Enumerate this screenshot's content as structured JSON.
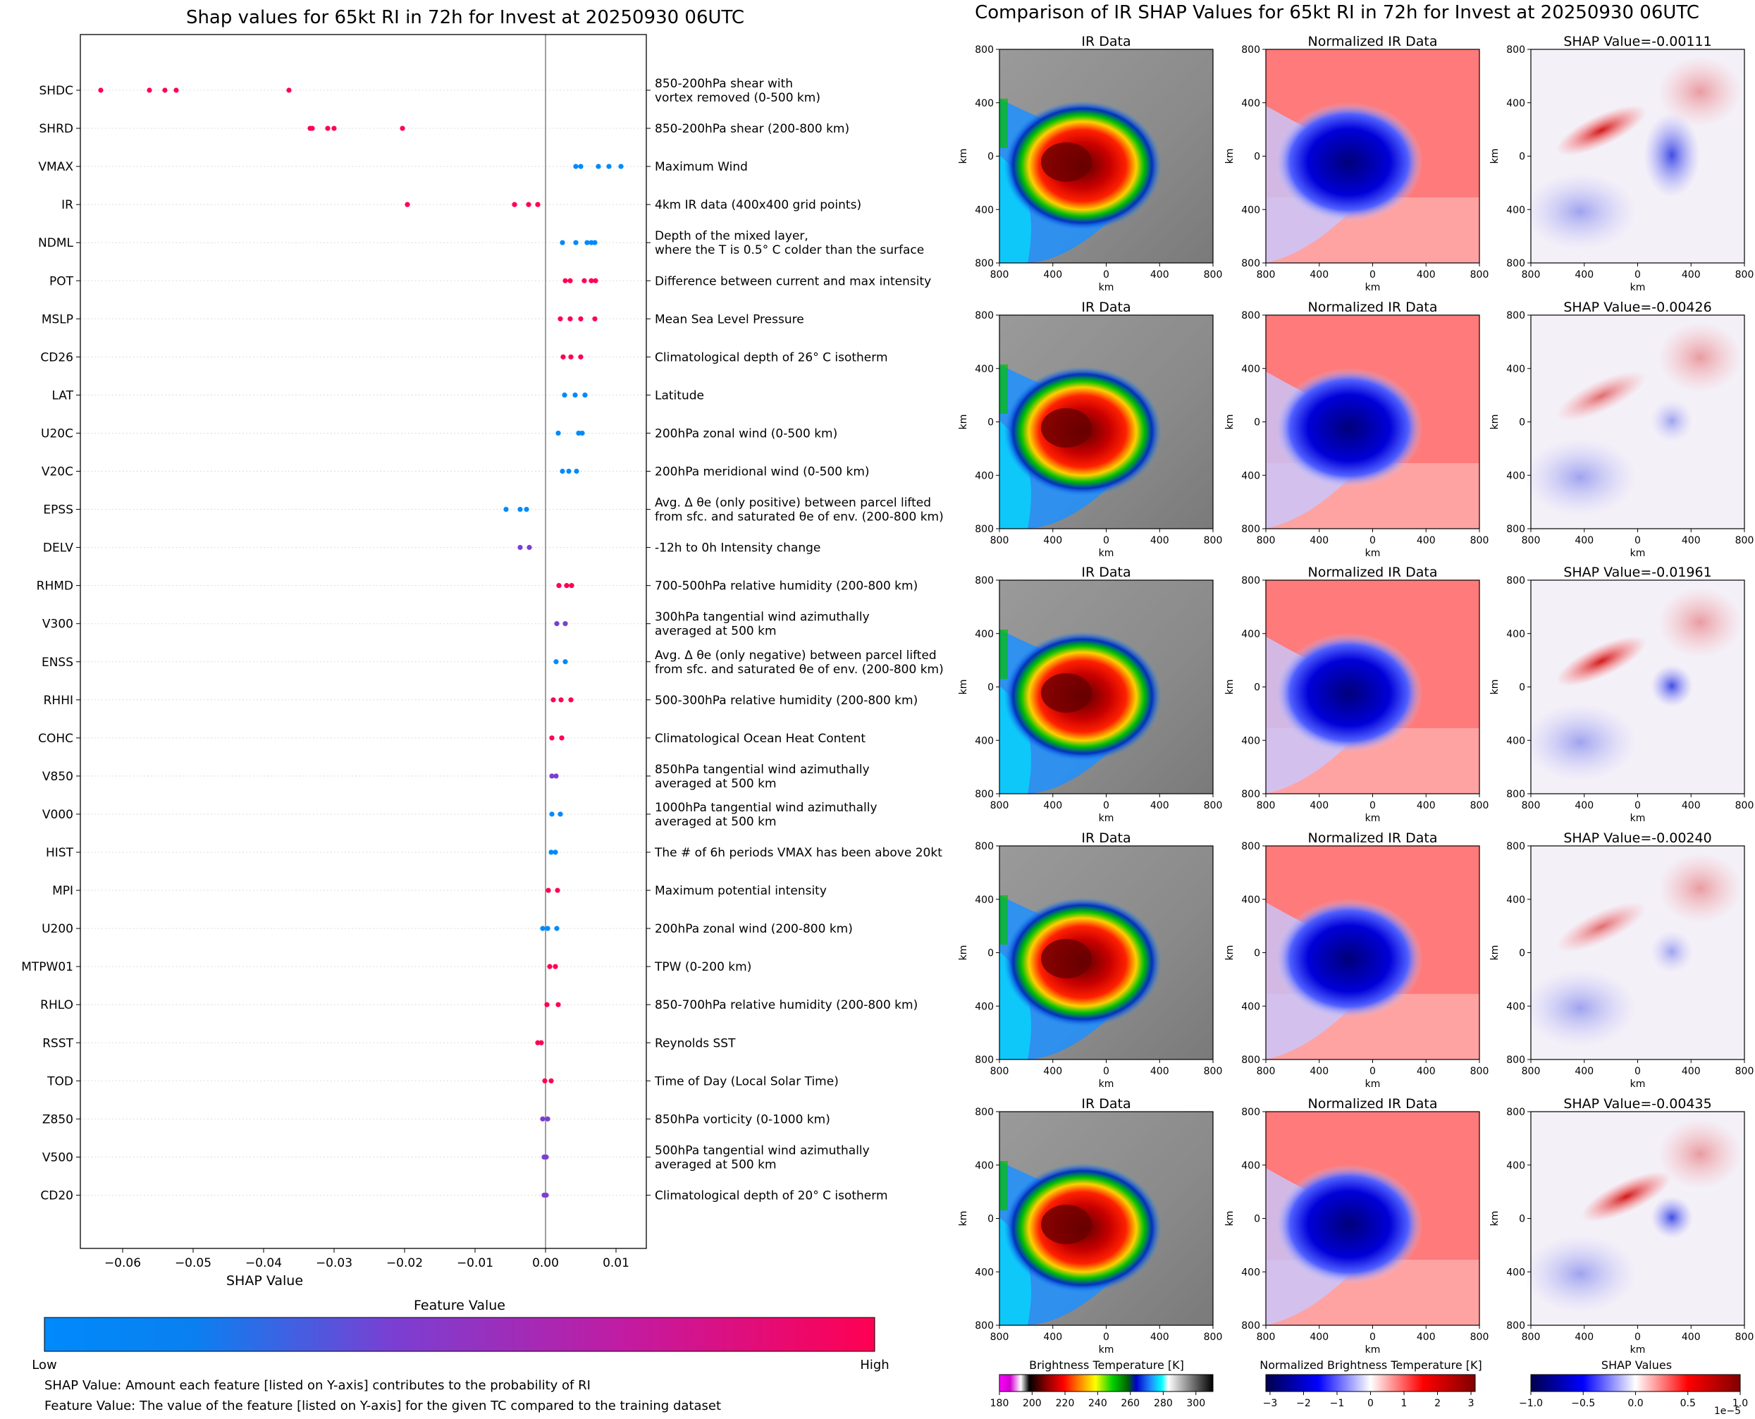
{
  "colors": {
    "low": "#008afb",
    "mid": "#7a3fd2",
    "high": "#ff0052",
    "grid": "#dddddd",
    "axis": "#000000"
  },
  "left_panel": {
    "legend": {
      "title": "Feature Value",
      "low_label": "Low",
      "high_label": "High"
    },
    "notes": [
      "SHAP Value: Amount each feature [listed on Y-axis] contributes to the probability of RI",
      "Feature Value: The value of the feature [listed on Y-axis] for the given TC compared to the training dataset"
    ]
  },
  "right_panel": {
    "title": "Comparison of IR SHAP Values for 65kt RI in 72h for Invest at 20250930 06UTC",
    "column_titles": [
      "IR Data",
      "Normalized IR Data"
    ],
    "shap_titles": [
      "SHAP Value=-0.00111",
      "SHAP Value=-0.00426",
      "SHAP Value=-0.01961",
      "SHAP Value=-0.00240",
      "SHAP Value=-0.00435"
    ],
    "shap_values": [
      -0.00111,
      -0.00426,
      -0.01961,
      -0.0024,
      -0.00435
    ],
    "tick_labels": [
      "800",
      "400",
      "0",
      "400",
      "800"
    ],
    "axis_unit": "km",
    "colorbars": [
      {
        "label": "Brightness Temperature [K]",
        "ticks": [
          "180",
          "200",
          "220",
          "240",
          "260",
          "280",
          "300"
        ]
      },
      {
        "label": "Normalized Brightness Temperature [K]",
        "ticks": [
          "−3",
          "−2",
          "−1",
          "0",
          "1",
          "2",
          "3"
        ]
      },
      {
        "label": "SHAP Values",
        "ticks": [
          "−1.0",
          "−0.5",
          "0.0",
          "0.5",
          "1.0"
        ],
        "offset": "1e−5"
      }
    ]
  },
  "chart_data": {
    "type": "scatter",
    "title": "Shap values for 65kt RI in 72h for Invest at 20250930 06UTC",
    "xlabel": "SHAP Value",
    "xlim": [
      -0.066,
      0.0143
    ],
    "xticks": [
      -0.06,
      -0.05,
      -0.04,
      -0.03,
      -0.02,
      -0.01,
      0.0,
      0.01
    ],
    "xtick_labels": [
      "−0.06",
      "−0.05",
      "−0.04",
      "−0.03",
      "−0.02",
      "−0.01",
      "0.00",
      "0.01"
    ],
    "features": [
      {
        "name": "SHDC",
        "description": [
          "850-200hPa shear with",
          "vortex removed (0-500 km)"
        ],
        "color": "high",
        "points": [
          -0.0631,
          -0.0562,
          -0.054,
          -0.0524,
          -0.0364
        ]
      },
      {
        "name": "SHRD",
        "description": [
          "850-200hPa shear (200-800 km)"
        ],
        "color": "high",
        "points": [
          -0.0334,
          -0.0331,
          -0.0309,
          -0.03,
          -0.0203
        ]
      },
      {
        "name": "VMAX",
        "description": [
          "Maximum Wind"
        ],
        "color": "low",
        "points": [
          0.0043,
          0.005,
          0.0075,
          0.009,
          0.0107
        ]
      },
      {
        "name": "IR",
        "description": [
          "4km IR data (400x400 grid points)"
        ],
        "color": "high",
        "points": [
          -0.0196,
          -0.0044,
          -0.0024,
          -0.0011
        ]
      },
      {
        "name": "NDML",
        "description": [
          "Depth of the mixed layer,",
          "where the T is 0.5° C colder than the surface"
        ],
        "color": "low",
        "points": [
          0.0024,
          0.0043,
          0.0059,
          0.0065,
          0.007
        ]
      },
      {
        "name": "POT",
        "description": [
          "Difference between current and max intensity"
        ],
        "color": "high",
        "points": [
          0.0028,
          0.0035,
          0.0055,
          0.0065,
          0.0071
        ]
      },
      {
        "name": "MSLP",
        "description": [
          "Mean Sea Level Pressure"
        ],
        "color": "high",
        "points": [
          0.0021,
          0.0035,
          0.005,
          0.007
        ]
      },
      {
        "name": "CD26",
        "description": [
          "Climatological depth of 26° C isotherm"
        ],
        "color": "high",
        "points": [
          0.0025,
          0.0036,
          0.005
        ]
      },
      {
        "name": "LAT",
        "description": [
          "Latitude"
        ],
        "color": "low",
        "points": [
          0.0027,
          0.0042,
          0.0056
        ]
      },
      {
        "name": "U20C",
        "description": [
          "200hPa zonal wind (0-500 km)"
        ],
        "color": "low",
        "points": [
          0.0018,
          0.0047,
          0.0052
        ]
      },
      {
        "name": "V20C",
        "description": [
          "200hPa meridional wind (0-500 km)"
        ],
        "color": "low",
        "points": [
          0.0024,
          0.0033,
          0.0044
        ]
      },
      {
        "name": "EPSS",
        "description": [
          "Avg. Δ θe (only positive) between parcel lifted",
          "from sfc. and saturated θe of env. (200-800 km)"
        ],
        "color": "low",
        "points": [
          -0.0056,
          -0.0036,
          -0.0027
        ]
      },
      {
        "name": "DELV",
        "description": [
          "-12h to 0h Intensity change"
        ],
        "color": "mid",
        "points": [
          -0.0036,
          -0.0023
        ]
      },
      {
        "name": "RHMD",
        "description": [
          "700-500hPa relative humidity (200-800 km)"
        ],
        "color": "high",
        "points": [
          0.0019,
          0.003,
          0.0037
        ]
      },
      {
        "name": "V300",
        "description": [
          "300hPa tangential wind azimuthally",
          "averaged at 500 km"
        ],
        "color": "mid",
        "points": [
          0.0016,
          0.0028
        ]
      },
      {
        "name": "ENSS",
        "description": [
          "Avg. Δ θe (only negative) between parcel lifted",
          "from sfc. and saturated θe of env. (200-800 km)"
        ],
        "color": "low",
        "points": [
          0.0015,
          0.0028
        ]
      },
      {
        "name": "RHHI",
        "description": [
          "500-300hPa relative humidity (200-800 km)"
        ],
        "color": "high",
        "points": [
          0.0011,
          0.0022,
          0.0036
        ]
      },
      {
        "name": "COHC",
        "description": [
          "Climatological Ocean Heat Content"
        ],
        "color": "high",
        "points": [
          0.0009,
          0.0023
        ]
      },
      {
        "name": "V850",
        "description": [
          "850hPa tangential wind azimuthally",
          "averaged at 500 km"
        ],
        "color": "mid",
        "points": [
          0.0009,
          0.0015
        ]
      },
      {
        "name": "V000",
        "description": [
          "1000hPa tangential wind azimuthally",
          "averaged at 500 km"
        ],
        "color": "low",
        "points": [
          0.0009,
          0.0021
        ]
      },
      {
        "name": "HIST",
        "description": [
          "The # of 6h periods VMAX has been above 20kt"
        ],
        "color": "low",
        "points": [
          0.0008,
          0.0014
        ]
      },
      {
        "name": "MPI",
        "description": [
          "Maximum potential intensity"
        ],
        "color": "high",
        "points": [
          0.0004,
          0.0017
        ]
      },
      {
        "name": "U200",
        "description": [
          "200hPa zonal wind (200-800 km)"
        ],
        "color": "low",
        "points": [
          -0.0004,
          0.0003,
          0.0016
        ]
      },
      {
        "name": "MTPW01",
        "description": [
          "TPW (0-200 km)"
        ],
        "color": "high",
        "points": [
          0.0006,
          0.0014
        ]
      },
      {
        "name": "RHLO",
        "description": [
          "850-700hPa relative humidity (200-800 km)"
        ],
        "color": "high",
        "points": [
          0.0002,
          0.0018
        ]
      },
      {
        "name": "RSST",
        "description": [
          "Reynolds SST"
        ],
        "color": "high",
        "points": [
          -0.0011,
          -0.0006
        ]
      },
      {
        "name": "TOD",
        "description": [
          "Time of Day (Local Solar Time)"
        ],
        "color": "high",
        "points": [
          -0.0001,
          0.0008
        ]
      },
      {
        "name": "Z850",
        "description": [
          "850hPa vorticity (0-1000 km)"
        ],
        "color": "mid",
        "points": [
          -0.0004,
          0.0003
        ]
      },
      {
        "name": "V500",
        "description": [
          "500hPa tangential wind azimuthally",
          "averaged at 500 km"
        ],
        "color": "mid",
        "points": [
          -0.0002,
          0.0001
        ]
      },
      {
        "name": "CD20",
        "description": [
          "Climatological depth of 20° C isotherm"
        ],
        "color": "mid",
        "points": [
          -0.0002,
          0.0001
        ]
      }
    ]
  }
}
